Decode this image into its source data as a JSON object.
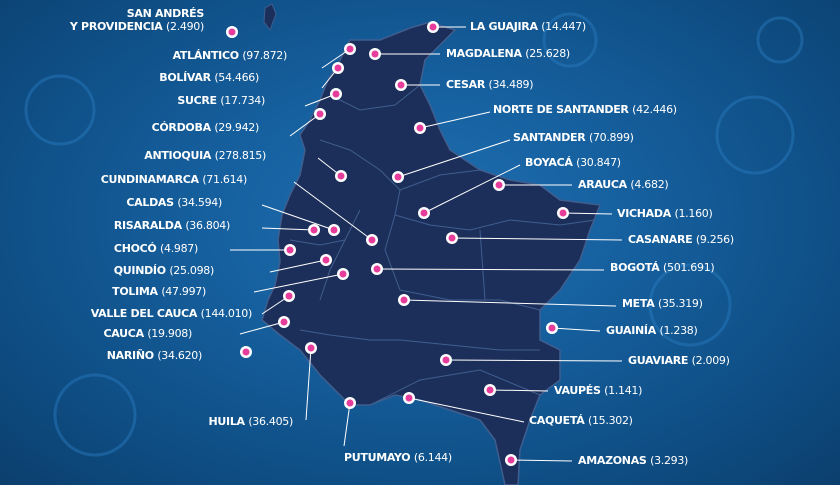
{
  "departments": [
    {
      "name": "SAN ANDRÉS",
      "name2": "Y PROVIDENCIA",
      "value": "(2.490)"
    },
    {
      "name": "ATLÁNTICO",
      "value": "(97.872)"
    },
    {
      "name": "BOLÍVAR",
      "value": "(54.466)"
    },
    {
      "name": "SUCRE",
      "value": "(17.734)"
    },
    {
      "name": "CÓRDOBA",
      "value": "(29.942)"
    },
    {
      "name": "ANTIOQUIA",
      "value": "(278.815)"
    },
    {
      "name": "CUNDINAMARCA",
      "value": "(71.614)"
    },
    {
      "name": "CALDAS",
      "value": "(34.594)"
    },
    {
      "name": "RISARALDA",
      "value": "(36.804)"
    },
    {
      "name": "CHOCÓ",
      "value": "(4.987)"
    },
    {
      "name": "QUINDÍO",
      "value": "(25.098)"
    },
    {
      "name": "TOLIMA",
      "value": "(47.997)"
    },
    {
      "name": "VALLE DEL CAUCA",
      "value": "(144.010)"
    },
    {
      "name": "CAUCA",
      "value": "(19.908)"
    },
    {
      "name": "NARIÑO",
      "value": "(34.620)"
    },
    {
      "name": "HUILA",
      "value": "(36.405)"
    },
    {
      "name": "PUTUMAYO",
      "value": "(6.144)"
    },
    {
      "name": "LA GUAJIRA",
      "value": "(14.447)"
    },
    {
      "name": "MAGDALENA",
      "value": "(25.628)"
    },
    {
      "name": "CESAR",
      "value": "(34.489)"
    },
    {
      "name": "NORTE DE SANTANDER",
      "value": "(42.446)"
    },
    {
      "name": "SANTANDER",
      "value": "(70.899)"
    },
    {
      "name": "BOYACÁ",
      "value": "(30.847)"
    },
    {
      "name": "ARAUCA",
      "value": "(4.682)"
    },
    {
      "name": "VICHADA",
      "value": "(1.160)"
    },
    {
      "name": "CASANARE",
      "value": "(9.256)"
    },
    {
      "name": "BOGOTÁ",
      "value": "(501.691)"
    },
    {
      "name": "META",
      "value": "(35.319)"
    },
    {
      "name": "GUAINÍA",
      "value": "(1.238)"
    },
    {
      "name": "GUAVIARE",
      "value": "(2.009)"
    },
    {
      "name": "VAUPÉS",
      "value": "(1.141)"
    },
    {
      "name": "CAQUETÁ",
      "value": "(15.302)"
    },
    {
      "name": "AMAZONAS",
      "value": "(3.293)"
    }
  ],
  "colors": {
    "background": "#16609f",
    "land": "#1c2f5a",
    "border": "#3f5e8f",
    "marker": "#e63d9b",
    "line": "#ffffff"
  }
}
